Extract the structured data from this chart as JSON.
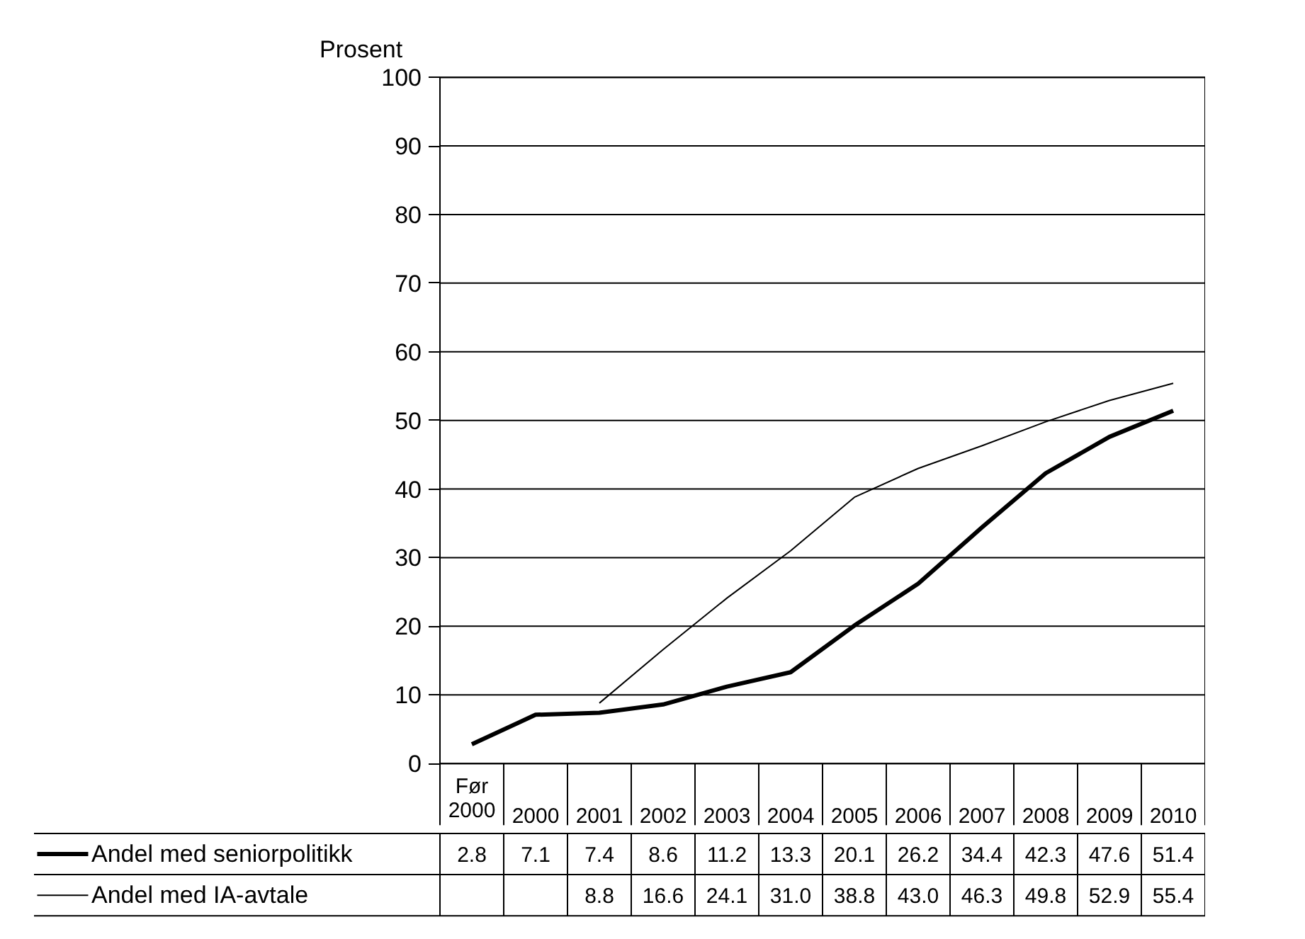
{
  "chart_data": {
    "type": "line",
    "ylabel": "Prosent",
    "categories": [
      "Før 2000",
      "2000",
      "2001",
      "2002",
      "2003",
      "2004",
      "2005",
      "2006",
      "2007",
      "2008",
      "2009",
      "2010"
    ],
    "series": [
      {
        "name": "Andel med seniorpolitikk",
        "color": "#000000",
        "values": [
          2.8,
          7.1,
          7.4,
          8.6,
          11.2,
          13.3,
          20.1,
          26.2,
          34.4,
          42.3,
          47.6,
          51.4
        ],
        "value_labels": [
          "2.8",
          "7.1",
          "7.4",
          "8.6",
          "11.2",
          "13.3",
          "20.1",
          "26.2",
          "34.4",
          "42.3",
          "47.6",
          "51.4"
        ]
      },
      {
        "name": "Andel med IA-avtale",
        "color": "#000000",
        "values": [
          null,
          null,
          8.8,
          16.6,
          24.1,
          31.0,
          38.8,
          43.0,
          46.3,
          49.8,
          52.9,
          55.4
        ],
        "value_labels": [
          null,
          null,
          "8.8",
          "16.6",
          "24.1",
          "31.0",
          "38.8",
          "43.0",
          "46.3",
          "49.8",
          "52.9",
          "55.4"
        ]
      }
    ],
    "ylim": [
      0,
      100
    ],
    "yticks": [
      0,
      10,
      20,
      30,
      40,
      50,
      60,
      70,
      80,
      90,
      100
    ],
    "grid": "y",
    "legend": "bottom"
  }
}
